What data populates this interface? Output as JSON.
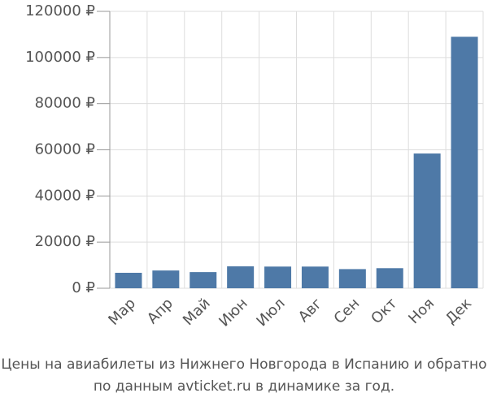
{
  "chart_data": {
    "type": "bar",
    "title": "Цены на авиабилеты из Нижнего Новгорода в Испанию и обратно",
    "subtitle": "по данным avticket.ru в динамике за год.",
    "categories": [
      "Мар",
      "Апр",
      "Май",
      "Июн",
      "Июл",
      "Авг",
      "Сен",
      "Окт",
      "Ноя",
      "Дек"
    ],
    "values": [
      6700,
      7700,
      7000,
      9500,
      9400,
      9400,
      8300,
      8700,
      58400,
      109000
    ],
    "color": "#4e79a7",
    "ylim": [
      0,
      120000
    ],
    "yticks": [
      {
        "value": 0,
        "label": "0 ₽"
      },
      {
        "value": 20000,
        "label": "20000 ₽"
      },
      {
        "value": 40000,
        "label": "40000 ₽"
      },
      {
        "value": 60000,
        "label": "60000 ₽"
      },
      {
        "value": 80000,
        "label": "80000 ₽"
      },
      {
        "value": 100000,
        "label": "100000 ₽"
      },
      {
        "value": 120000,
        "label": "120000 ₽"
      }
    ],
    "grid": true
  }
}
